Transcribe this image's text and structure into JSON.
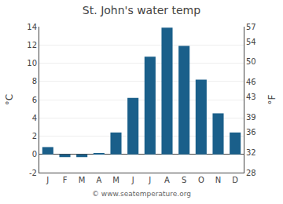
{
  "chart_data": {
    "type": "bar",
    "title": "St. John's water temp",
    "categories": [
      "J",
      "F",
      "M",
      "A",
      "M",
      "J",
      "J",
      "A",
      "S",
      "O",
      "N",
      "D"
    ],
    "values": [
      0.8,
      -0.3,
      -0.3,
      0.1,
      2.4,
      6.2,
      10.7,
      13.9,
      11.9,
      8.2,
      4.5,
      2.4
    ],
    "color": "#1a5f8a",
    "ylabel": "°C",
    "y2label": "°F",
    "ylim": [
      -2,
      14
    ],
    "yticks": [
      -2,
      0,
      2,
      4,
      6,
      8,
      10,
      12,
      14
    ],
    "y2lim": [
      28,
      57
    ],
    "y2ticks": [
      28,
      32,
      36,
      39,
      43,
      46,
      50,
      54,
      57
    ],
    "grid": true,
    "annotations": [
      "© www.seatemperature.org"
    ]
  }
}
